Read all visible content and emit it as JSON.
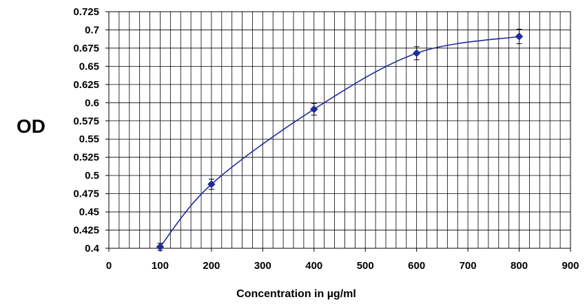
{
  "chart_data": {
    "type": "scatter",
    "title": "",
    "xlabel": "Concentration in µg/ml",
    "ylabel": "OD",
    "xlim": [
      0,
      900
    ],
    "ylim": [
      0.4,
      0.725
    ],
    "x_ticks": [
      0,
      100,
      200,
      300,
      400,
      500,
      600,
      700,
      800,
      900
    ],
    "y_ticks": [
      0.4,
      0.425,
      0.45,
      0.475,
      0.5,
      0.525,
      0.55,
      0.575,
      0.6,
      0.625,
      0.65,
      0.675,
      0.7,
      0.725
    ],
    "y_tick_labels": [
      "0.4",
      "0.425",
      "0.45",
      "0.475",
      "0.5",
      "0.525",
      "0.55",
      "0.575",
      "0.6",
      "0.625",
      "0.65",
      "0.675",
      "0.7",
      "0.725"
    ],
    "grid": true,
    "minor_x_step": 20,
    "minor_y_step": 0.025,
    "legend": "none",
    "smoothed_line": true,
    "series": [
      {
        "x": [
          100,
          200,
          400,
          600,
          800
        ],
        "y": [
          0.402,
          0.488,
          0.591,
          0.668,
          0.691
        ],
        "error": [
          0.005,
          0.007,
          0.008,
          0.009,
          0.01
        ],
        "marker": "diamond",
        "color": "#1f2a9c"
      }
    ]
  }
}
